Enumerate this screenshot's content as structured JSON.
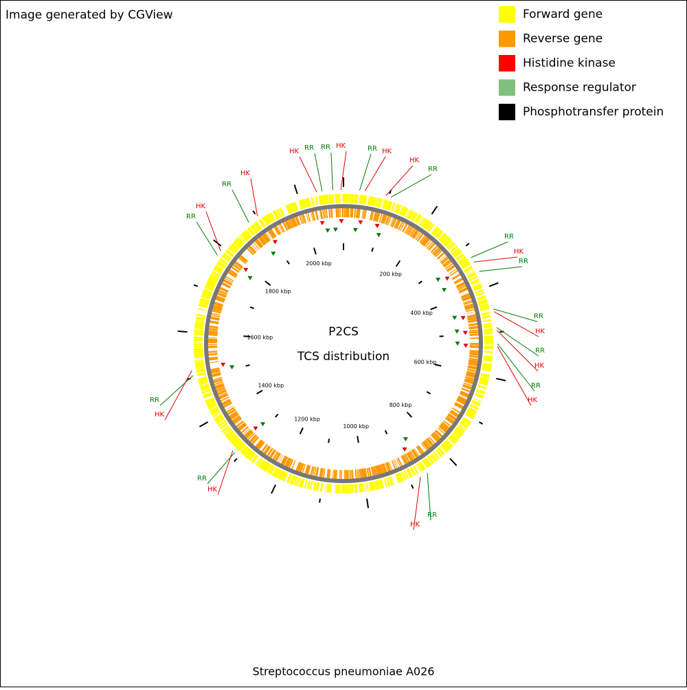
{
  "header": {
    "credit": "Image generated by CGView"
  },
  "legend": {
    "items": [
      {
        "label": "Forward gene",
        "color": "#ffff00"
      },
      {
        "label": "Reverse gene",
        "color": "#ff9900"
      },
      {
        "label": "Histidine kinase",
        "color": "#ff0000"
      },
      {
        "label": "Response regulator",
        "color": "#80c080"
      },
      {
        "label": "Phosphotransfer protein",
        "color": "#000000"
      }
    ]
  },
  "map": {
    "title": "P2CS",
    "subtitle": "TCS distribution",
    "tick_labels": [
      "200 kbp",
      "400 kbp",
      "600 kbp",
      "800 kbp",
      "1000 kbp",
      "1200 kbp",
      "1400 kbp",
      "1600 kbp",
      "1800 kbp",
      "2000 kbp"
    ],
    "callouts": [
      "HK",
      "RR",
      "RR",
      "HK",
      "RR",
      "HK",
      "HK",
      "RR",
      "RR",
      "HK",
      "RR",
      "RR",
      "HK",
      "RR",
      "HK",
      "RR",
      "HK",
      "RR",
      "HK",
      "RR",
      "HK",
      "RR",
      "HK",
      "RR",
      "HK",
      "RR",
      "HK"
    ]
  },
  "footer": {
    "organism": "Streptococcus pneumoniae A026"
  }
}
